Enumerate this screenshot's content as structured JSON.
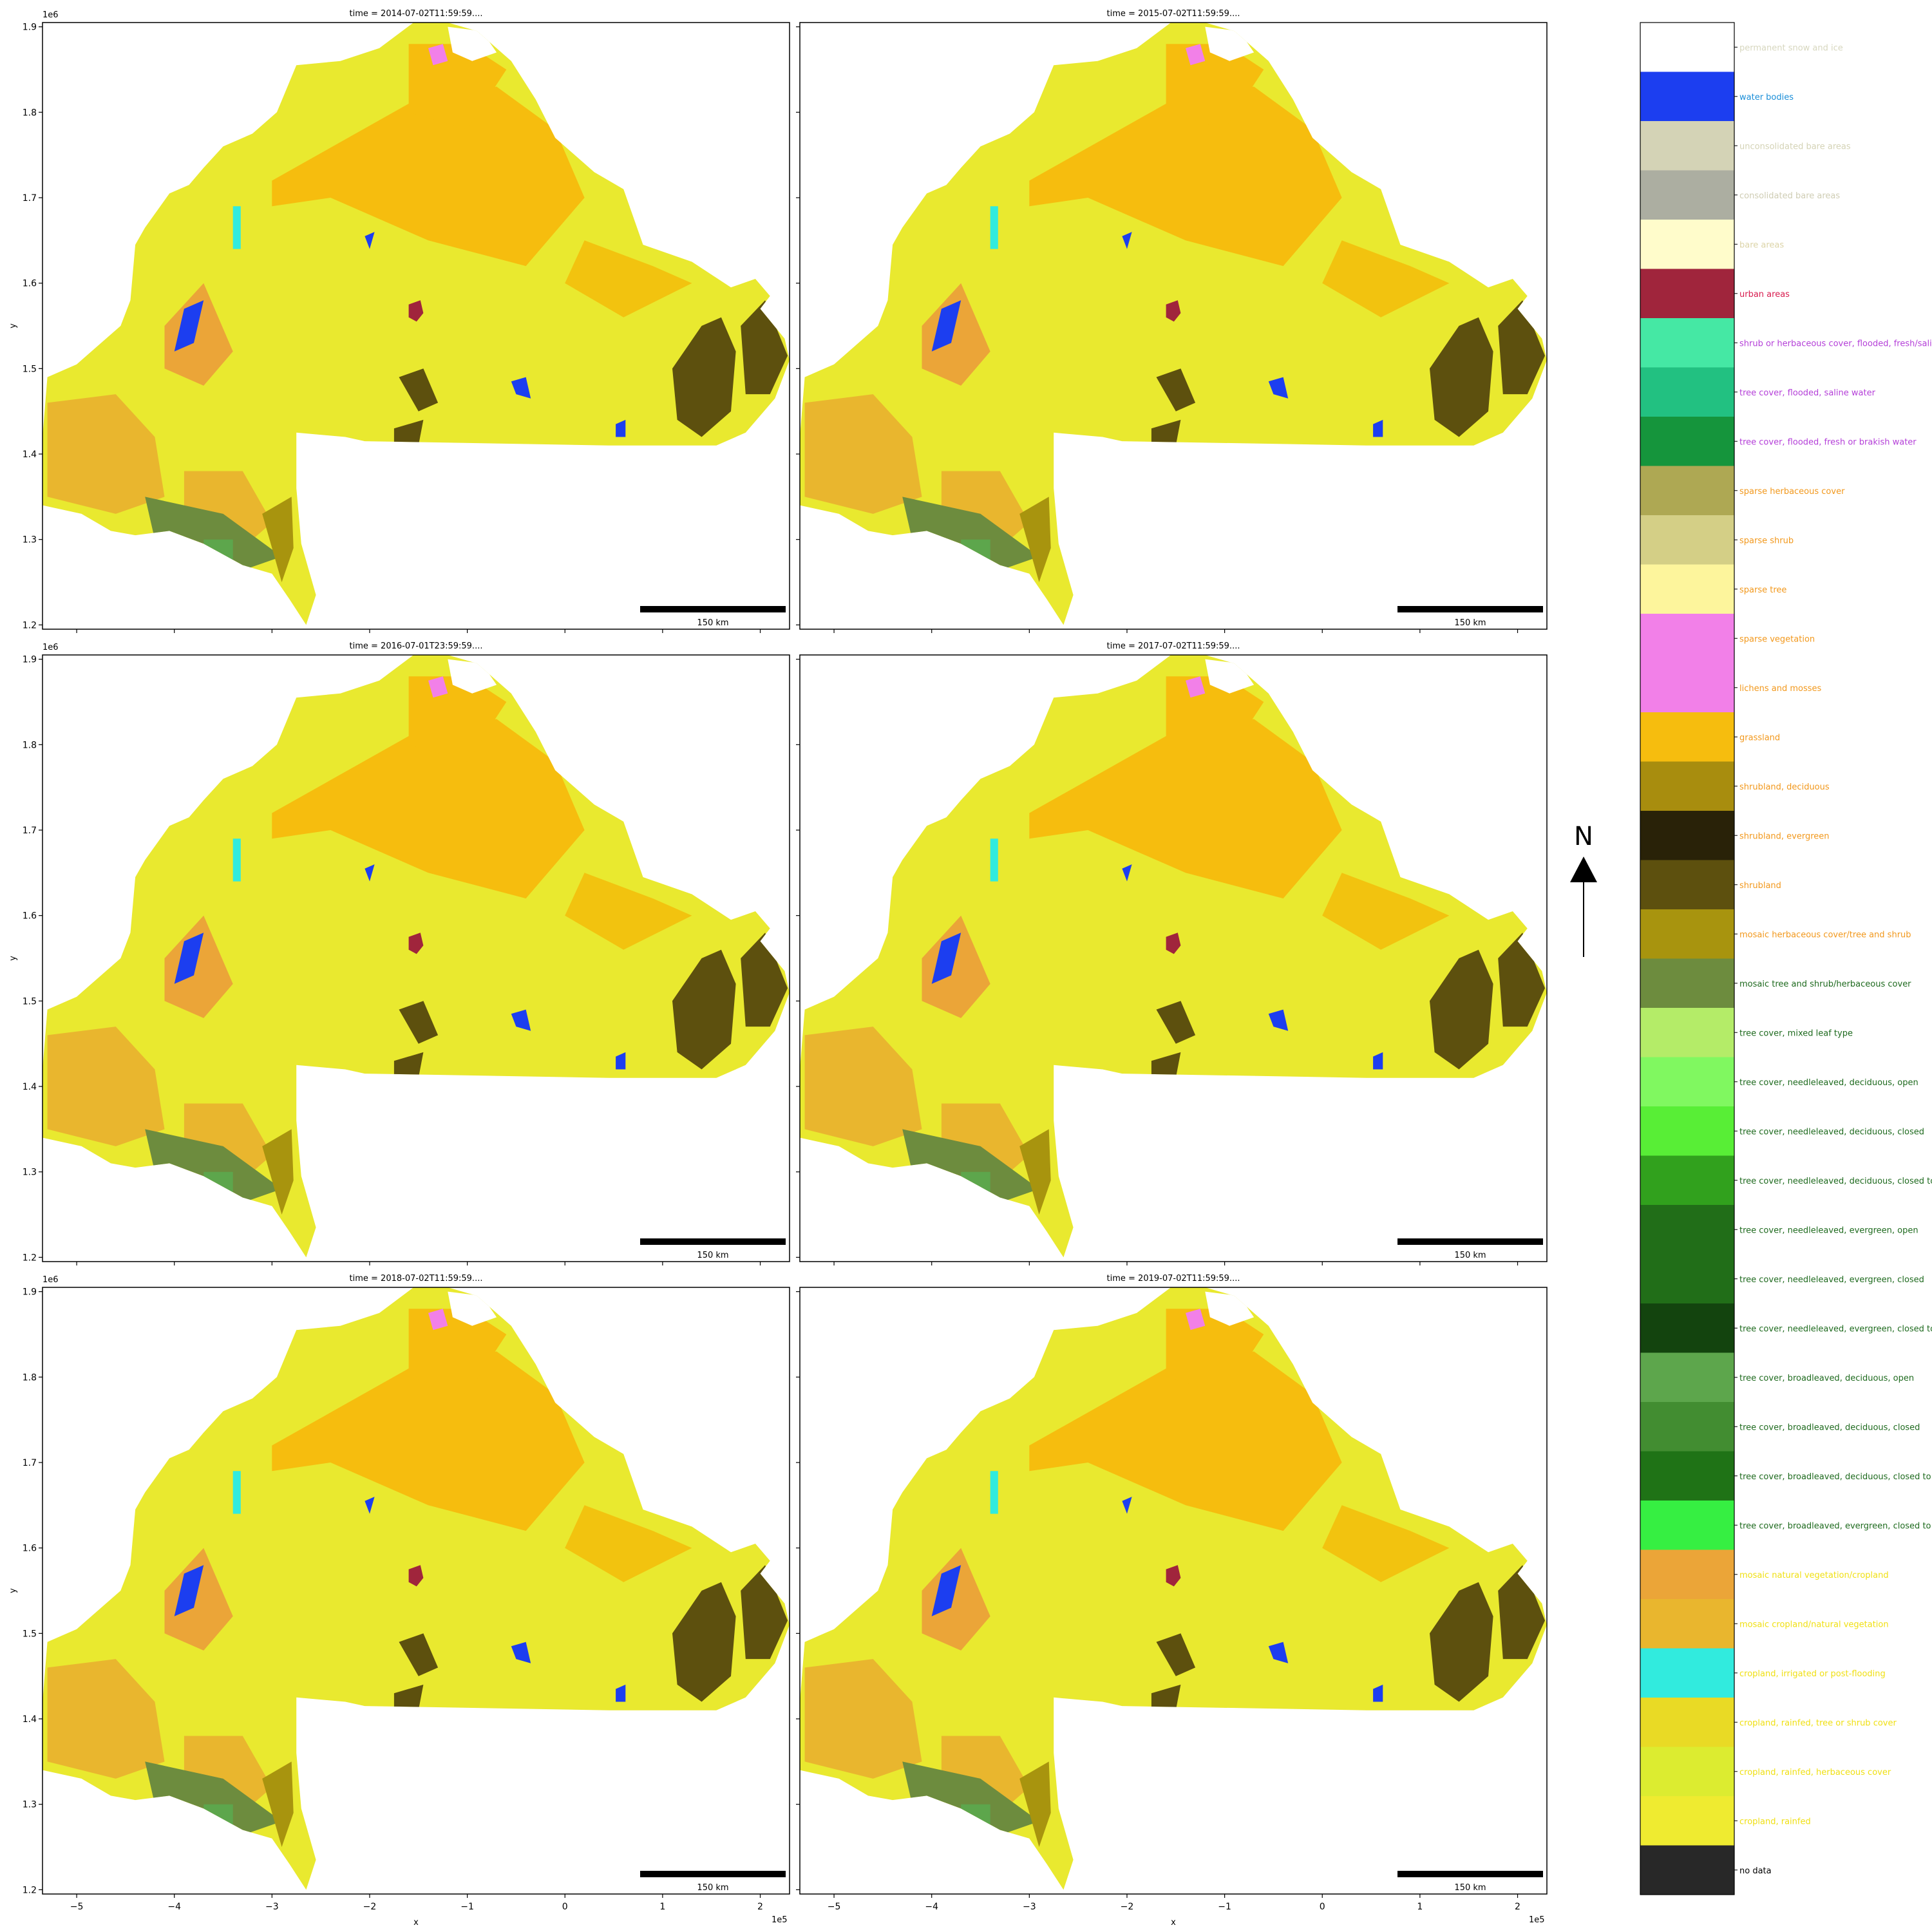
{
  "chart_data": {
    "type": "heatmap",
    "description_kind": "facet grid of categorical land cover maps",
    "facet_rows": 3,
    "facet_cols": 2,
    "panels": [
      {
        "title": "time = 2014-07-02T11:59:59...."
      },
      {
        "title": "time = 2015-07-02T11:59:59...."
      },
      {
        "title": "time = 2016-07-01T23:59:59...."
      },
      {
        "title": "time = 2017-07-02T11:59:59...."
      },
      {
        "title": "time = 2018-07-02T11:59:59...."
      },
      {
        "title": "time = 2019-07-02T11:59:59...."
      }
    ],
    "xlabel": "x",
    "ylabel": "y",
    "x_offset_label": "1e5",
    "y_offset_label": "1e6",
    "xlim": [
      -5.35,
      2.3
    ],
    "ylim": [
      1.195,
      1.905
    ],
    "x_ticks": [
      -5,
      -4,
      -3,
      -2,
      -1,
      0,
      1,
      2
    ],
    "x_tick_labels": [
      "−5",
      "−4",
      "−3",
      "−2",
      "−1",
      "0",
      "1",
      "2"
    ],
    "y_ticks": [
      1.2,
      1.3,
      1.4,
      1.5,
      1.6,
      1.7,
      1.8,
      1.9
    ],
    "y_tick_labels": [
      "1.2",
      "1.3",
      "1.4",
      "1.5",
      "1.6",
      "1.7",
      "1.8",
      "1.9"
    ],
    "scale_bar_label": "150 km",
    "north_arrow_label": "N",
    "legend": [
      {
        "label": "permanent snow and ice",
        "color": "#ffffff",
        "text_color": "#d7d7bf"
      },
      {
        "label": "water bodies",
        "color": "#1c3ef0",
        "text_color": "#1a8ed8"
      },
      {
        "label": "unconsolidated bare areas",
        "color": "#d4d3b6",
        "text_color": "#d4d3b6"
      },
      {
        "label": "consolidated bare areas",
        "color": "#acaea1",
        "text_color": "#cfcdb4"
      },
      {
        "label": "bare areas",
        "color": "#fffccb",
        "text_color": "#dcd4a8"
      },
      {
        "label": "urban areas",
        "color": "#a0253c",
        "text_color": "#d81b4e"
      },
      {
        "label": "shrub or herbaceous cover, flooded, fresh/saline/brakish water",
        "color": "#45e8a4",
        "text_color": "#b43fd8"
      },
      {
        "label": "tree cover, flooded, saline water",
        "color": "#22c181",
        "text_color": "#b43fd8"
      },
      {
        "label": "tree cover, flooded, fresh or brakish water",
        "color": "#15953c",
        "text_color": "#b43fd8"
      },
      {
        "label": "sparse herbaceous cover",
        "color": "#aea853",
        "text_color": "#f2981c"
      },
      {
        "label": "sparse shrub",
        "color": "#d4cf86",
        "text_color": "#f2981c"
      },
      {
        "label": "sparse tree",
        "color": "#fdf59c",
        "text_color": "#f2981c"
      },
      {
        "label": "sparse vegetation",
        "color": "#f280e8",
        "text_color": "#f2981c"
      },
      {
        "label": "lichens and mosses",
        "color": "#f280e8",
        "text_color": "#f2981c"
      },
      {
        "label": "grassland",
        "color": "#f6bd0e",
        "text_color": "#f2981c"
      },
      {
        "label": "shrubland, deciduous",
        "color": "#a88d0e",
        "text_color": "#f2981c"
      },
      {
        "label": "shrubland, evergreen",
        "color": "#292208",
        "text_color": "#f2981c"
      },
      {
        "label": "shrubland",
        "color": "#5d500e",
        "text_color": "#f2981c"
      },
      {
        "label": "mosaic herbaceous cover/tree and shrub",
        "color": "#a8940e",
        "text_color": "#f2981c"
      },
      {
        "label": "mosaic tree and shrub/herbaceous cover",
        "color": "#6d8c3e",
        "text_color": "#1e6a1e"
      },
      {
        "label": "tree cover, mixed leaf type",
        "color": "#b4ec68",
        "text_color": "#1e6a1e"
      },
      {
        "label": "tree cover, needleleaved, deciduous, open",
        "color": "#80f860",
        "text_color": "#1e6a1e"
      },
      {
        "label": "tree cover, needleleaved, deciduous, closed",
        "color": "#58ee36",
        "text_color": "#1e6a1e"
      },
      {
        "label": "tree cover, needleleaved, deciduous, closed to open",
        "color": "#31a11d",
        "text_color": "#1e6a1e"
      },
      {
        "label": "tree cover, needleleaved, evergreen, open",
        "color": "#216e18",
        "text_color": "#1e6a1e"
      },
      {
        "label": "tree cover, needleleaved, evergreen, closed",
        "color": "#216e18",
        "text_color": "#1e6a1e"
      },
      {
        "label": "tree cover, needleleaved, evergreen, closed to open",
        "color": "#13440e",
        "text_color": "#1e6a1e"
      },
      {
        "label": "tree cover, broadleaved, deciduous, open",
        "color": "#5da64c",
        "text_color": "#1e6a1e"
      },
      {
        "label": "tree cover, broadleaved, deciduous, closed",
        "color": "#428d31",
        "text_color": "#1e6a1e"
      },
      {
        "label": "tree cover, broadleaved, deciduous, closed to open",
        "color": "#1f7316",
        "text_color": "#1e6a1e"
      },
      {
        "label": "tree cover, broadleaved, evergreen, closed to open",
        "color": "#36ef42",
        "text_color": "#1e6a1e"
      },
      {
        "label": "mosaic natural vegetation/cropland",
        "color": "#eba538",
        "text_color": "#f0e014"
      },
      {
        "label": "mosaic cropland/natural vegetation",
        "color": "#e9b62e",
        "text_color": "#f0e014"
      },
      {
        "label": "cropland, irrigated or post-flooding",
        "color": "#31ebde",
        "text_color": "#f0e014"
      },
      {
        "label": "cropland, rainfed, tree or shrub cover",
        "color": "#e9da25",
        "text_color": "#f0e014"
      },
      {
        "label": "cropland, rainfed, herbaceous cover",
        "color": "#dcec30",
        "text_color": "#f0e014"
      },
      {
        "label": "cropland, rainfed",
        "color": "#efeb30",
        "text_color": "#f0e014"
      },
      {
        "label": "no data",
        "color": "#282828",
        "text_color": "#000000"
      }
    ]
  }
}
